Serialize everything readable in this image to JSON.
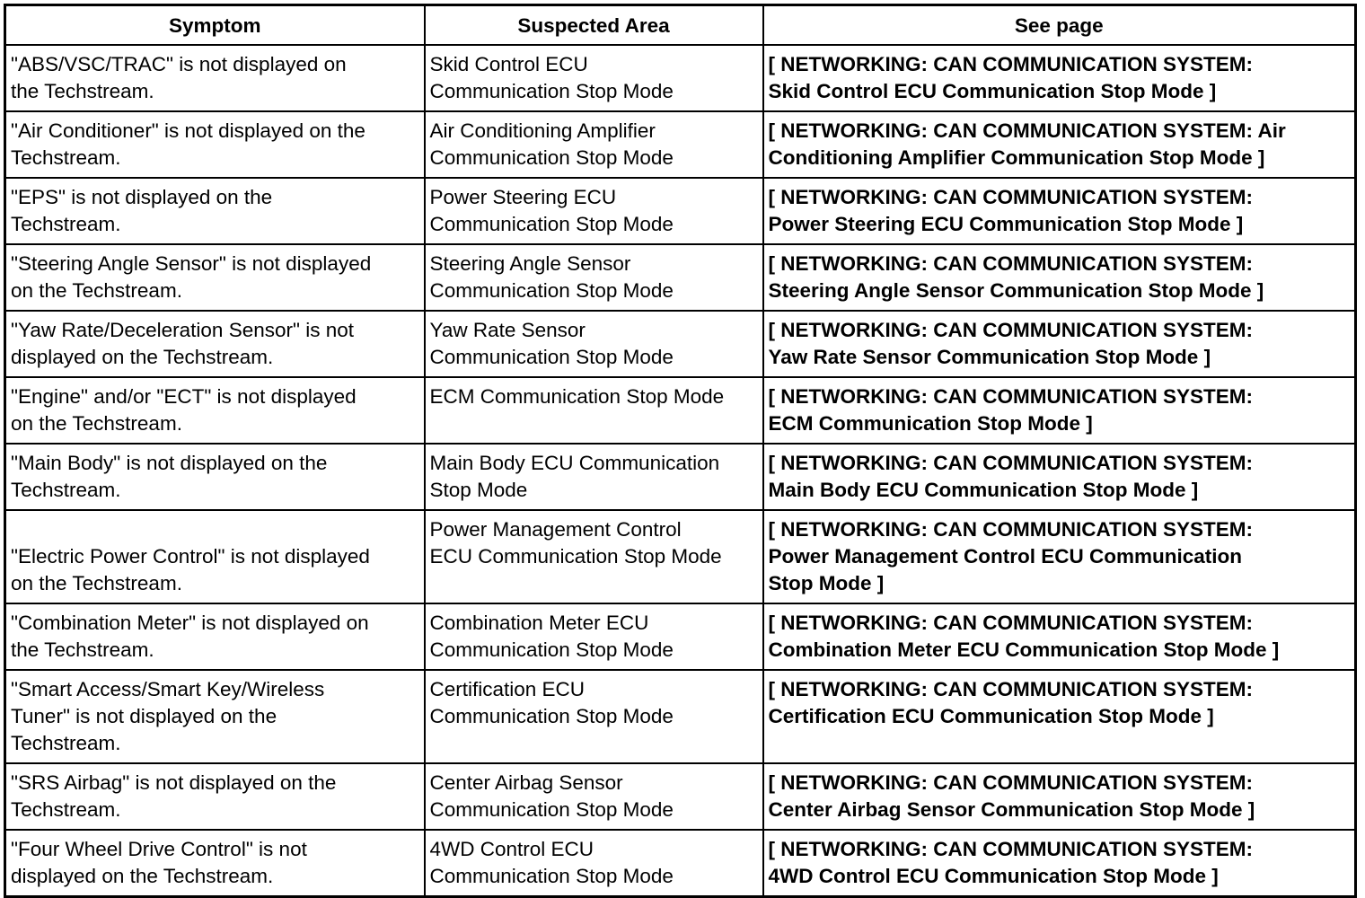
{
  "table": {
    "headers": [
      "Symptom",
      "Suspected Area",
      "See page"
    ],
    "rows": [
      {
        "symptom": "\"ABS/VSC/TRAC\" is not displayed on\nthe Techstream.",
        "area": "Skid Control ECU\nCommunication Stop Mode",
        "see": "[ NETWORKING: CAN COMMUNICATION SYSTEM:\nSkid Control ECU Communication Stop Mode ]"
      },
      {
        "symptom": "\"Air Conditioner\" is not displayed on the\nTechstream.",
        "area": "Air Conditioning Amplifier\nCommunication Stop Mode",
        "see": "[ NETWORKING: CAN COMMUNICATION SYSTEM: Air\nConditioning Amplifier Communication Stop Mode ]"
      },
      {
        "symptom": "\"EPS\" is not displayed on the\nTechstream.",
        "area": "Power Steering ECU\nCommunication Stop Mode",
        "see": "[ NETWORKING: CAN COMMUNICATION SYSTEM:\nPower Steering ECU Communication Stop Mode ]"
      },
      {
        "symptom": "\"Steering Angle Sensor\" is not displayed\non the Techstream.",
        "area": "Steering Angle Sensor\nCommunication Stop Mode",
        "see": "[ NETWORKING: CAN COMMUNICATION SYSTEM:\nSteering Angle Sensor Communication Stop Mode ]"
      },
      {
        "symptom": "\"Yaw Rate/Deceleration Sensor\" is not\ndisplayed on the Techstream.",
        "area": "Yaw Rate Sensor\nCommunication Stop Mode",
        "see": "[ NETWORKING: CAN COMMUNICATION SYSTEM:\nYaw Rate Sensor Communication Stop Mode ]"
      },
      {
        "symptom": "\"Engine\" and/or \"ECT\" is not displayed\non the Techstream.",
        "area": "ECM Communication Stop Mode",
        "see": "[ NETWORKING: CAN COMMUNICATION SYSTEM:\nECM Communication Stop Mode ]"
      },
      {
        "symptom": "\"Main Body\" is not displayed on the\nTechstream.",
        "area": "Main Body ECU Communication\nStop Mode",
        "see": "[ NETWORKING: CAN COMMUNICATION SYSTEM:\nMain Body ECU Communication Stop Mode ]"
      },
      {
        "symptom": "\n\"Electric Power Control\" is not displayed\non the Techstream.",
        "area": "Power Management Control\nECU Communication Stop Mode",
        "see": "[ NETWORKING: CAN COMMUNICATION SYSTEM:\nPower Management Control ECU Communication\nStop Mode ]"
      },
      {
        "symptom": "\"Combination Meter\" is not displayed on\nthe Techstream.",
        "area": "Combination Meter ECU\nCommunication Stop Mode",
        "see": "[ NETWORKING: CAN COMMUNICATION SYSTEM:\nCombination Meter ECU Communication Stop Mode ]"
      },
      {
        "symptom": "\"Smart Access/Smart Key/Wireless\nTuner\" is not displayed on the\nTechstream.",
        "area": "Certification ECU\nCommunication Stop Mode",
        "see": "[ NETWORKING: CAN COMMUNICATION SYSTEM:\nCertification ECU Communication Stop Mode ]"
      },
      {
        "symptom": "\"SRS Airbag\" is not displayed on the\nTechstream.",
        "area": "Center Airbag Sensor\nCommunication Stop Mode",
        "see": "[ NETWORKING: CAN COMMUNICATION SYSTEM:\nCenter Airbag Sensor Communication Stop Mode ]"
      },
      {
        "symptom": "\"Four Wheel Drive Control\" is not\ndisplayed on the Techstream.",
        "area": "4WD Control ECU\nCommunication Stop Mode",
        "see": "[ NETWORKING: CAN COMMUNICATION SYSTEM:\n4WD Control ECU Communication Stop Mode ]"
      }
    ]
  }
}
